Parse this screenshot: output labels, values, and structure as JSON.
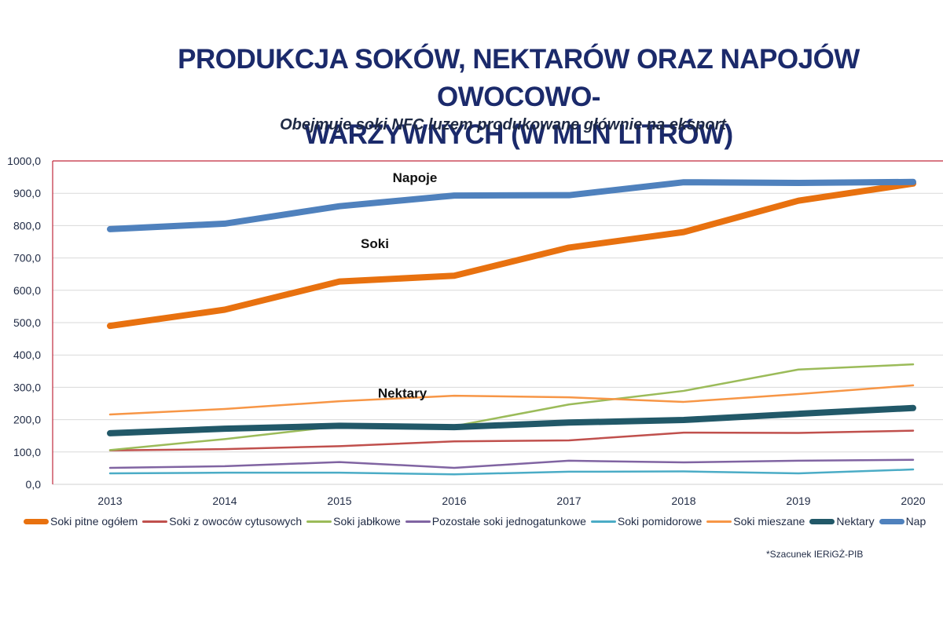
{
  "header": {
    "title_line1": "PRODUKCJA SOKÓW, NEKTARÓW ORAZ NAPOJÓW OWOCOWO-",
    "title_line2": "WARZYWNYCH (W MLN LITRÓW)",
    "subtitle": "Obejmuje soki NFC luzem produkowane głównie na eksport"
  },
  "footnote": "*Szacunek IERiGŻ-PIB",
  "chart_data": {
    "type": "line",
    "title": "PRODUKCJA SOKÓW, NEKTARÓW ORAZ NAPOJÓW OWOCOWO-WARZYWNYCH (W MLN LITRÓW)",
    "subtitle": "Obejmuje soki NFC luzem produkowane głównie na eksport",
    "xlabel": "",
    "ylabel": "",
    "x": [
      "2013",
      "2014",
      "2015",
      "2016",
      "2017",
      "2018",
      "2019",
      "2020"
    ],
    "ylim": [
      0,
      1000
    ],
    "yticks": [
      0,
      100,
      200,
      300,
      400,
      500,
      600,
      700,
      800,
      900,
      1000
    ],
    "ytick_labels": [
      "0,0",
      "100,0",
      "200,0",
      "300,0",
      "400,0",
      "500,0",
      "600,0",
      "700,0",
      "800,0",
      "900,0",
      "1000,0"
    ],
    "grid": true,
    "legend_position": "bottom",
    "series": [
      {
        "name": "Soki pitne ogółem",
        "legend_label": "Soki pitne ogółem",
        "color": "#e8710f",
        "weight": "thick",
        "values": [
          490,
          540,
          627,
          645,
          732,
          780,
          877,
          930
        ]
      },
      {
        "name": "Soki z owoców cytusowych",
        "legend_label": "Soki z owoców cytusowych",
        "color": "#c0504d",
        "weight": "thin",
        "values": [
          105,
          109,
          118,
          133,
          136,
          160,
          159,
          166
        ]
      },
      {
        "name": "Soki jabłkowe",
        "legend_label": "Soki jabłkowe",
        "color": "#9bbb59",
        "weight": "thin",
        "values": [
          106,
          140,
          180,
          180,
          247,
          289,
          355,
          371
        ]
      },
      {
        "name": "Pozostałe soki jednogatunkowe",
        "legend_label": "Pozostałe soki jednogatunkowe",
        "color": "#8064a2",
        "weight": "thin",
        "values": [
          51,
          56,
          69,
          51,
          73,
          68,
          73,
          76
        ]
      },
      {
        "name": "Soki pomidorowe",
        "legend_label": "Soki pomidorowe",
        "color": "#4bacc6",
        "weight": "thin",
        "values": [
          34,
          36,
          36,
          31,
          39,
          40,
          34,
          46
        ]
      },
      {
        "name": "Soki mieszane",
        "legend_label": "Soki mieszane",
        "color": "#f79646",
        "weight": "thin",
        "values": [
          216,
          233,
          257,
          274,
          269,
          255,
          279,
          306
        ]
      },
      {
        "name": "Nektary",
        "legend_label": "Nektary",
        "color": "#215868",
        "weight": "thick",
        "values": [
          158,
          172,
          181,
          177,
          191,
          199,
          218,
          236
        ]
      },
      {
        "name": "Napoje",
        "legend_label": "Nap",
        "color": "#4f81bd",
        "weight": "thick",
        "values": [
          789,
          806,
          860,
          893,
          894,
          934,
          932,
          935
        ]
      }
    ],
    "annotations": [
      {
        "text": "Napoje",
        "x": "2016",
        "y": 935
      },
      {
        "text": "Soki",
        "x": "2015",
        "y": 730
      },
      {
        "text": "Nektary",
        "x": "2015",
        "y": 268
      }
    ]
  }
}
